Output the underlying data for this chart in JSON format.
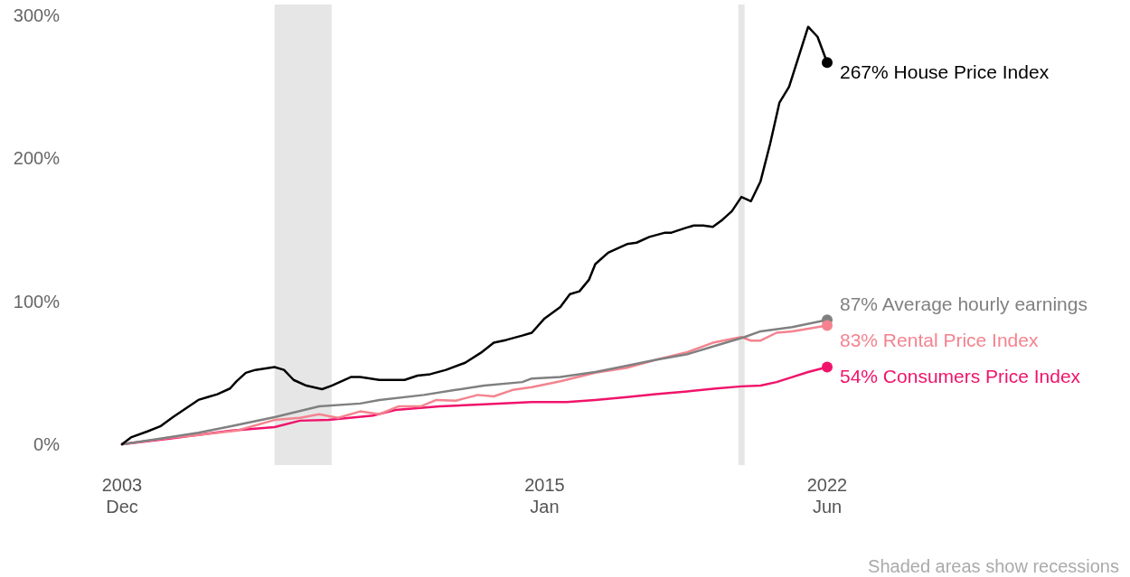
{
  "chart_data": {
    "type": "line",
    "xlim": [
      "2003-12",
      "2022-06"
    ],
    "xticks": [
      {
        "value": "2003-12",
        "label": "2003\nDec"
      },
      {
        "value": "2015-01",
        "label": "2015\nJan"
      },
      {
        "value": "2022-06",
        "label": "2022\nJun"
      }
    ],
    "ylim": [
      0,
      300
    ],
    "yticks": [
      {
        "value": 0,
        "label": "0%"
      },
      {
        "value": 100,
        "label": "100%"
      },
      {
        "value": 200,
        "label": "200%"
      },
      {
        "value": 300,
        "label": "300%"
      }
    ],
    "bands": [
      {
        "axis": "x",
        "from": "2007-12",
        "to": "2009-06",
        "color": "#e6e6e6"
      },
      {
        "axis": "x",
        "from": "2020-02",
        "to": "2020-04",
        "color": "#e6e6e6"
      }
    ],
    "series": [
      {
        "name": "House Price Index",
        "color": "#000000",
        "x": [
          "2003-12",
          "2004-03",
          "2004-08",
          "2004-12",
          "2005-04",
          "2005-08",
          "2005-12",
          "2006-03",
          "2006-06",
          "2006-10",
          "2006-12",
          "2007-03",
          "2007-06",
          "2007-12",
          "2008-03",
          "2008-06",
          "2008-10",
          "2009-03",
          "2009-06",
          "2009-12",
          "2010-03",
          "2010-09",
          "2011-05",
          "2011-09",
          "2012-01",
          "2012-06",
          "2012-12",
          "2013-05",
          "2013-09",
          "2014-01",
          "2014-06",
          "2014-09",
          "2015-01",
          "2015-06",
          "2015-09",
          "2015-12",
          "2016-03",
          "2016-05",
          "2016-09",
          "2016-11",
          "2017-03",
          "2017-06",
          "2017-10",
          "2018-03",
          "2018-05",
          "2018-09",
          "2018-12",
          "2019-03",
          "2019-06",
          "2019-09",
          "2019-12",
          "2020-03",
          "2020-06",
          "2020-09",
          "2020-12",
          "2021-03",
          "2021-06",
          "2021-12",
          "2022-03",
          "2022-06"
        ],
        "values": [
          0,
          5,
          9,
          12.5,
          19,
          25,
          31,
          33,
          35,
          39,
          44,
          50,
          52,
          54,
          52,
          45,
          41,
          38.5,
          41,
          47,
          47,
          45,
          45,
          48,
          49,
          52,
          57,
          64,
          71,
          73,
          76,
          78,
          88,
          96,
          105,
          107,
          115,
          126,
          134,
          136,
          140,
          141,
          145,
          148,
          148,
          151,
          153,
          153,
          152,
          157,
          163,
          173,
          170,
          184,
          210,
          239,
          250,
          292,
          285,
          267
        ],
        "value_labels": [
          null,
          null,
          null,
          null,
          null,
          null,
          null,
          null,
          null,
          null,
          null,
          null,
          null,
          null,
          null,
          null,
          null,
          null,
          null,
          null,
          null,
          null,
          null,
          null,
          null,
          null,
          null,
          null,
          null,
          null,
          null,
          null,
          null,
          null,
          null,
          null,
          null,
          null,
          null,
          null,
          null,
          null,
          null,
          null,
          null,
          null,
          null,
          null,
          null,
          null,
          null,
          null,
          null,
          null,
          null,
          null,
          null,
          null,
          null,
          "267%"
        ]
      },
      {
        "name": "Average hourly earnings",
        "color": "#808080",
        "x": [
          "2003-12",
          "2004-12",
          "2005-12",
          "2006-10",
          "2007-12",
          "2009-02",
          "2010-03",
          "2010-09",
          "2011-11",
          "2012-09",
          "2013-06",
          "2014-06",
          "2014-09",
          "2015-06",
          "2016-05",
          "2017-03",
          "2017-12",
          "2018-10",
          "2019-07",
          "2020-04",
          "2020-09",
          "2021-07",
          "2022-06"
        ],
        "values": [
          0,
          4,
          8,
          12.5,
          19,
          26.5,
          28.5,
          31,
          34.5,
          38,
          41,
          43.5,
          46,
          47,
          50.5,
          55,
          59,
          63,
          69,
          75,
          79,
          82,
          87
        ],
        "value_labels": [
          null,
          null,
          null,
          null,
          null,
          null,
          null,
          null,
          null,
          null,
          null,
          null,
          null,
          null,
          null,
          null,
          null,
          null,
          null,
          null,
          null,
          null,
          "87%"
        ]
      },
      {
        "name": "Rental Price Index",
        "color": "#f4838f",
        "x": [
          "2003-12",
          "2005-03",
          "2005-12",
          "2006-12",
          "2007-12",
          "2008-08",
          "2009-02",
          "2009-08",
          "2010-03",
          "2010-09",
          "2011-03",
          "2011-10",
          "2012-03",
          "2012-09",
          "2013-04",
          "2013-09",
          "2014-03",
          "2014-09",
          "2015-06",
          "2016-05",
          "2017-03",
          "2017-12",
          "2018-10",
          "2019-06",
          "2020-03",
          "2020-06",
          "2020-09",
          "2021-02",
          "2021-07",
          "2022-06"
        ],
        "values": [
          0,
          4.5,
          6.5,
          9.5,
          17,
          18.5,
          21,
          18.5,
          23,
          21,
          26.5,
          26.5,
          31,
          30.5,
          34.5,
          33.5,
          38,
          40,
          44,
          50,
          53.5,
          59,
          64.5,
          71,
          75,
          72.5,
          72.5,
          78,
          79,
          83
        ],
        "value_labels": [
          null,
          null,
          null,
          null,
          null,
          null,
          null,
          null,
          null,
          null,
          null,
          null,
          null,
          null,
          null,
          null,
          null,
          null,
          null,
          null,
          null,
          null,
          null,
          null,
          null,
          null,
          null,
          null,
          null,
          "83%"
        ]
      },
      {
        "name": "Consumers Price Index",
        "color": "#f0136b",
        "x": [
          "2003-12",
          "2005-03",
          "2006-10",
          "2007-12",
          "2008-08",
          "2009-05",
          "2010-07",
          "2011-02",
          "2012-04",
          "2013-06",
          "2014-09",
          "2015-08",
          "2016-05",
          "2017-03",
          "2017-12",
          "2018-10",
          "2019-07",
          "2020-03",
          "2020-09",
          "2021-02",
          "2021-07",
          "2021-12",
          "2022-06"
        ],
        "values": [
          0,
          4,
          9.5,
          12,
          16.5,
          17,
          20,
          24,
          26.5,
          28,
          29.5,
          29.5,
          31,
          33,
          35,
          37,
          39,
          40.5,
          41,
          43.5,
          47,
          50.5,
          54
        ],
        "value_labels": [
          null,
          null,
          null,
          null,
          null,
          null,
          null,
          null,
          null,
          null,
          null,
          null,
          null,
          null,
          null,
          null,
          null,
          null,
          null,
          null,
          null,
          null,
          "54%"
        ]
      }
    ],
    "annotations": [
      "Shaded areas show recessions"
    ]
  }
}
